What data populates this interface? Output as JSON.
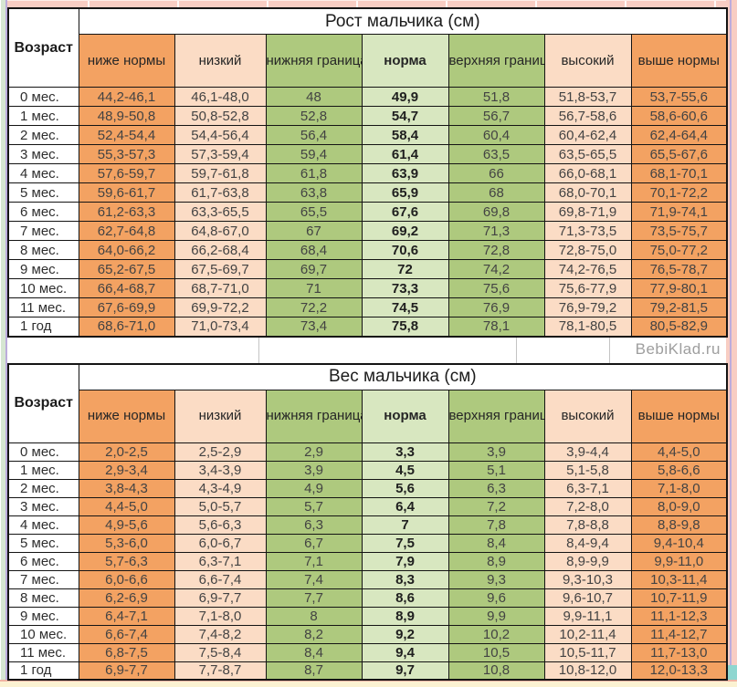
{
  "watermark": "BebiKlad.ru",
  "colors": {
    "background": "#F8CDC3",
    "below_above_norm_cell": "#F3A262",
    "low_high_cell": "#FBDCC5",
    "norm_boundary_cell": "#AEC97E",
    "norm_cell": "#D8E7C0",
    "border": "#141414"
  },
  "chart_data": [
    {
      "type": "table",
      "title": "Рост мальчика (см)",
      "age_header": "Возраст",
      "columns": [
        "ниже нормы",
        "низкий",
        "нижняя граница нормы",
        "норма",
        "верхняя граница нормы",
        "высокий",
        "выше нормы"
      ],
      "ages": [
        "0 мес.",
        "1 мес.",
        "2 мес.",
        "3 мес.",
        "4 мес.",
        "5 мес.",
        "6 мес.",
        "7 мес.",
        "8 мес.",
        "9 мес.",
        "10 мес.",
        "11 мес.",
        "1 год"
      ],
      "rows": [
        [
          "44,2-46,1",
          "46,1-48,0",
          "48",
          "49,9",
          "51,8",
          "51,8-53,7",
          "53,7-55,6"
        ],
        [
          "48,9-50,8",
          "50,8-52,8",
          "52,8",
          "54,7",
          "56,7",
          "56,7-58,6",
          "58,6-60,6"
        ],
        [
          "52,4-54,4",
          "54,4-56,4",
          "56,4",
          "58,4",
          "60,4",
          "60,4-62,4",
          "62,4-64,4"
        ],
        [
          "55,3-57,3",
          "57,3-59,4",
          "59,4",
          "61,4",
          "63,5",
          "63,5-65,5",
          "65,5-67,6"
        ],
        [
          "57,6-59,7",
          "59,7-61,8",
          "61,8",
          "63,9",
          "66",
          "66,0-68,1",
          "68,1-70,1"
        ],
        [
          "59,6-61,7",
          "61,7-63,8",
          "63,8",
          "65,9",
          "68",
          "68,0-70,1",
          "70,1-72,2"
        ],
        [
          "61,2-63,3",
          "63,3-65,5",
          "65,5",
          "67,6",
          "69,8",
          "69,8-71,9",
          "71,9-74,1"
        ],
        [
          "62,7-64,8",
          "64,8-67,0",
          "67",
          "69,2",
          "71,3",
          "71,3-73,5",
          "73,5-75,7"
        ],
        [
          "64,0-66,2",
          "66,2-68,4",
          "68,4",
          "70,6",
          "72,8",
          "72,8-75,0",
          "75,0-77,2"
        ],
        [
          "65,2-67,5",
          "67,5-69,7",
          "69,7",
          "72",
          "74,2",
          "74,2-76,5",
          "76,5-78,7"
        ],
        [
          "66,4-68,7",
          "68,7-71,0",
          "71",
          "73,3",
          "75,6",
          "75,6-77,9",
          "77,9-80,1"
        ],
        [
          "67,6-69,9",
          "69,9-72,2",
          "72,2",
          "74,5",
          "76,9",
          "76,9-79,2",
          "79,2-81,5"
        ],
        [
          "68,6-71,0",
          "71,0-73,4",
          "73,4",
          "75,8",
          "78,1",
          "78,1-80,5",
          "80,5-82,9"
        ]
      ]
    },
    {
      "type": "table",
      "title": "Вес мальчика (см)",
      "age_header": "Возраст",
      "columns": [
        "ниже нормы",
        "низкий",
        "нижняя граница нормы",
        "норма",
        "верхняя граница нормы",
        "высокий",
        "выше нормы"
      ],
      "ages": [
        "0 мес.",
        "1 мес.",
        "2 мес.",
        "3 мес.",
        "4 мес.",
        "5 мес.",
        "6 мес.",
        "7 мес.",
        "8 мес.",
        "9 мес.",
        "10 мес.",
        "11 мес.",
        "1 год"
      ],
      "rows": [
        [
          "2,0-2,5",
          "2,5-2,9",
          "2,9",
          "3,3",
          "3,9",
          "3,9-4,4",
          "4,4-5,0"
        ],
        [
          "2,9-3,4",
          "3,4-3,9",
          "3,9",
          "4,5",
          "5,1",
          "5,1-5,8",
          "5,8-6,6"
        ],
        [
          "3,8-4,3",
          "4,3-4,9",
          "4,9",
          "5,6",
          "6,3",
          "6,3-7,1",
          "7,1-8,0"
        ],
        [
          "4,4-5,0",
          "5,0-5,7",
          "5,7",
          "6,4",
          "7,2",
          "7,2-8,0",
          "8,0-9,0"
        ],
        [
          "4,9-5,6",
          "5,6-6,3",
          "6,3",
          "7",
          "7,8",
          "7,8-8,8",
          "8,8-9,8"
        ],
        [
          "5,3-6,0",
          "6,0-6,7",
          "6,7",
          "7,5",
          "8,4",
          "8,4-9,4",
          "9,4-10,4"
        ],
        [
          "5,7-6,3",
          "6,3-7,1",
          "7,1",
          "7,9",
          "8,9",
          "8,9-9,9",
          "9,9-11,0"
        ],
        [
          "6,0-6,6",
          "6,6-7,4",
          "7,4",
          "8,3",
          "9,3",
          "9,3-10,3",
          "10,3-11,4"
        ],
        [
          "6,2-6,9",
          "6,9-7,7",
          "7,7",
          "8,6",
          "9,6",
          "9,6-10,7",
          "10,7-11,9"
        ],
        [
          "6,4-7,1",
          "7,1-8,0",
          "8",
          "8,9",
          "9,9",
          "9,9-11,1",
          "11,1-12,3"
        ],
        [
          "6,6-7,4",
          "7,4-8,2",
          "8,2",
          "9,2",
          "10,2",
          "10,2-11,4",
          "11,4-12,7"
        ],
        [
          "6,8-7,5",
          "7,5-8,4",
          "8,4",
          "9,4",
          "10,5",
          "10,5-11,7",
          "11,7-13,0"
        ],
        [
          "6,9-7,7",
          "7,7-8,7",
          "8,7",
          "9,7",
          "10,8",
          "10,8-12,0",
          "12,0-13,3"
        ]
      ]
    }
  ]
}
